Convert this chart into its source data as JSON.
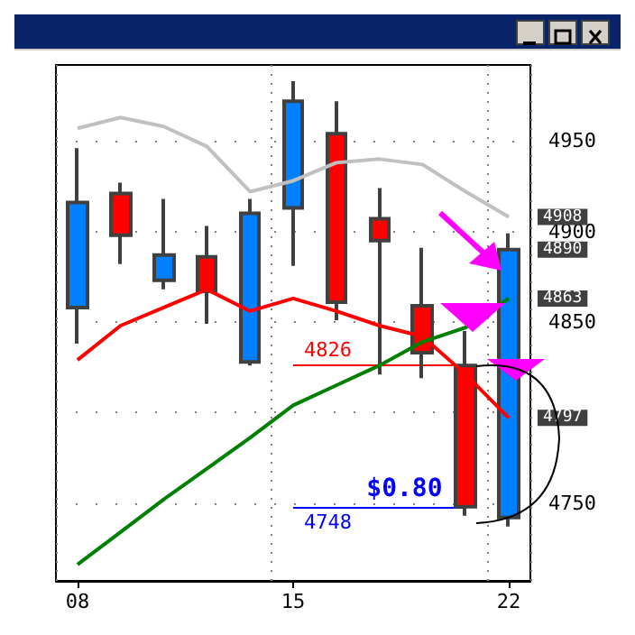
{
  "chart_data": {
    "type": "candlestick",
    "categories": [
      "08",
      null,
      null,
      null,
      null,
      "15",
      null,
      null,
      null,
      null,
      "22"
    ],
    "ohlc": [
      [
        4858,
        4946,
        4838,
        4916
      ],
      [
        4921,
        4927,
        4882,
        4898
      ],
      [
        4873,
        4918,
        4868,
        4887
      ],
      [
        4886,
        4903,
        4849,
        4867
      ],
      [
        4828,
        4918,
        4826,
        4910
      ],
      [
        4913,
        4983,
        4881,
        4972
      ],
      [
        4954,
        4972,
        4851,
        4861
      ],
      [
        4907,
        4924,
        4821,
        4895
      ],
      [
        4859,
        4891,
        4819,
        4833
      ],
      [
        4826,
        4845,
        4743,
        4748
      ],
      [
        4742,
        4899,
        4737,
        4890
      ]
    ],
    "colors": [
      "#0080ff",
      "#ff0000",
      "#0080ff",
      "#ff0000",
      "#0080ff",
      "#0080ff",
      "#ff0000",
      "#ff0000",
      "#ff0000",
      "#ff0000",
      "#0080ff"
    ],
    "series": [
      {
        "type": "line",
        "color": "#c0c0c0",
        "values": [
          4957,
          4963,
          4958,
          4947,
          4922,
          4928,
          4938,
          4940,
          4937,
          4922,
          4908
        ]
      },
      {
        "type": "line",
        "color": "#ff0000",
        "values": [
          4829,
          4848,
          4858,
          4868,
          4856,
          4863,
          4856,
          4848,
          4842,
          4821,
          4797
        ]
      },
      {
        "type": "line",
        "color": "#008000",
        "values": [
          4716,
          4734,
          4752,
          4769,
          4786,
          4804,
          4815,
          4826,
          4839,
          4847,
          4863
        ]
      }
    ],
    "ylim": [
      4707,
      4992
    ],
    "yticks": [
      4750,
      {
        "value": 4800,
        "label": null
      },
      4850,
      4900,
      4950
    ],
    "grid": true,
    "line_style": "solid",
    "ref_lines": [
      {
        "axis": "y",
        "value": 4826,
        "label": "4826",
        "color": "#ff0000"
      },
      {
        "axis": "y",
        "value": 4748,
        "label": "4748",
        "color": "#0000ff"
      }
    ],
    "annotations": [
      "$0.80",
      {
        "text": "4908",
        "x": "22",
        "y": 4908
      },
      {
        "text": "4890",
        "x": "22",
        "y": 4890
      },
      {
        "text": "4863",
        "x": "22",
        "y": 4863
      },
      {
        "text": "4797",
        "x": "22",
        "y": 4797
      }
    ]
  }
}
